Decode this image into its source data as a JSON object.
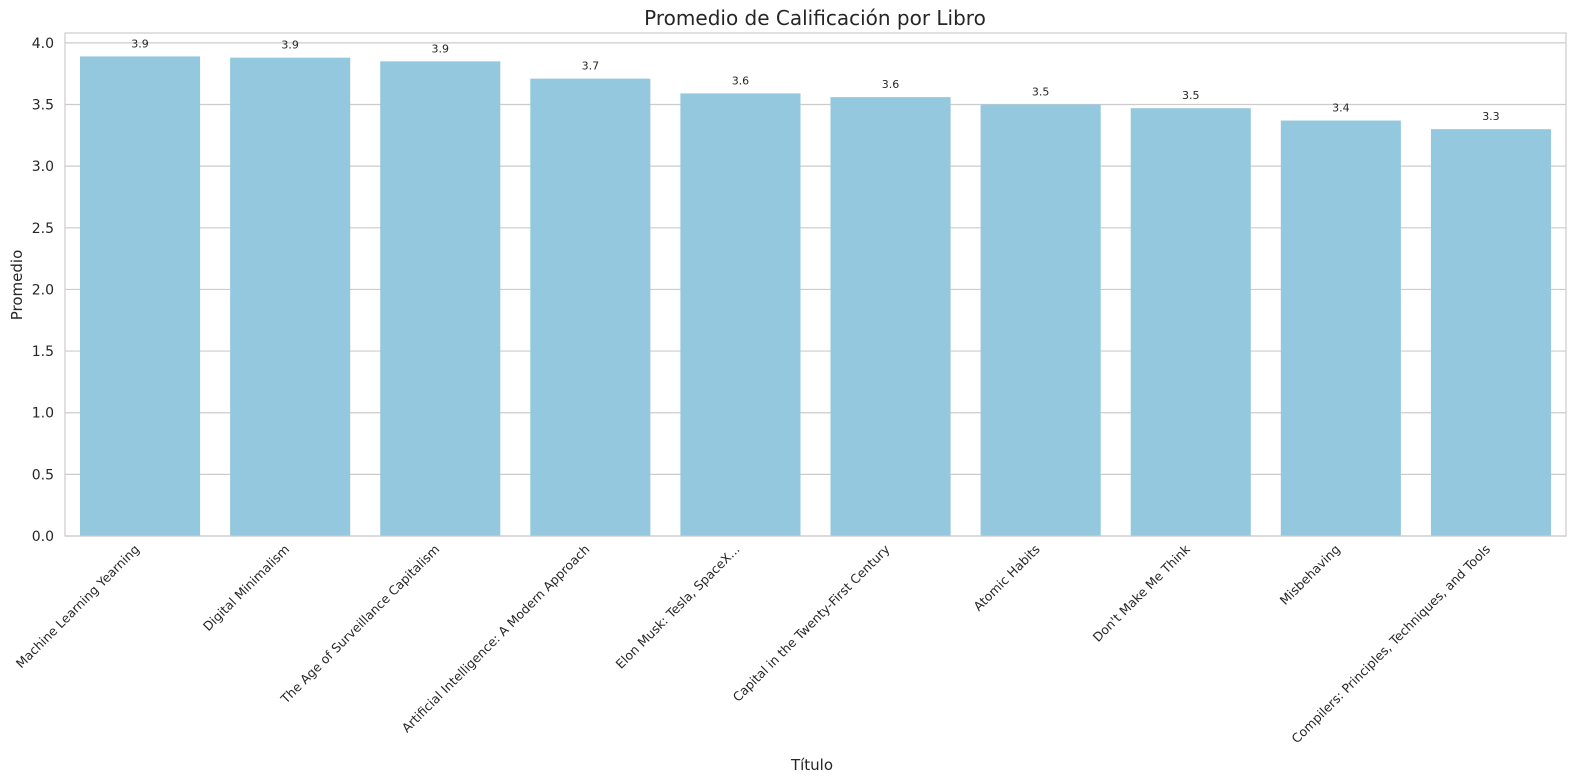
{
  "chart_data": {
    "type": "bar",
    "title": "Promedio de Calificación por Libro",
    "xlabel": "Título",
    "ylabel": "Promedio",
    "categories": [
      "Machine Learning Yearning",
      "Digital Minimalism",
      "The Age of Surveillance Capitalism",
      "Artificial Intelligence: A Modern Approach",
      "Elon Musk: Tesla, SpaceX...",
      "Capital in the Twenty-First Century",
      "Atomic Habits",
      "Don't Make Me Think",
      "Misbehaving",
      "Compilers: Principles, Techniques, and Tools"
    ],
    "values": [
      3.89,
      3.88,
      3.85,
      3.71,
      3.59,
      3.56,
      3.5,
      3.47,
      3.37,
      3.3
    ],
    "value_labels": [
      "3.9",
      "3.9",
      "3.9",
      "3.7",
      "3.6",
      "3.6",
      "3.5",
      "3.5",
      "3.4",
      "3.3"
    ],
    "yticks": [
      "0.0",
      "0.5",
      "1.0",
      "1.5",
      "2.0",
      "2.5",
      "3.0",
      "3.5",
      "4.0"
    ],
    "ylim": [
      0,
      4.08
    ],
    "grid": true,
    "bar_color": "#93c8de",
    "grid_color": "#cccccc"
  }
}
